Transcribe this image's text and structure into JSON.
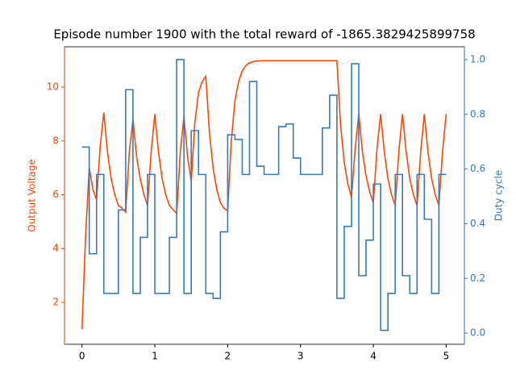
{
  "chart_data": {
    "type": "line",
    "title": "Episode number 1900 with the total reward of -1865.3829425899758",
    "y_label": "Output Voltage",
    "y2_label": "Duty cycle",
    "xlim": [
      -0.24,
      5.25
    ],
    "xticks": [
      0,
      1,
      2,
      3,
      4,
      5
    ],
    "ylim": [
      0.44,
      11.5
    ],
    "yticks": [
      2,
      4,
      6,
      8,
      10
    ],
    "y2lim": [
      -0.041,
      1.047
    ],
    "y2ticks": [
      {
        "value": 0,
        "label": "0.0"
      },
      {
        "value": 0.2,
        "label": "0.2"
      },
      {
        "value": 0.4,
        "label": "0.4"
      },
      {
        "value": 0.6,
        "label": "0.6"
      },
      {
        "value": 0.8,
        "label": "0.8"
      },
      {
        "value": 1,
        "label": "1.0"
      }
    ],
    "grid": false,
    "series": [
      {
        "name": "Output Voltage",
        "color": "#ff4500",
        "style": "line",
        "x": [
          0,
          0.05,
          0.1,
          0.15,
          0.2,
          0.25,
          0.3,
          0.35,
          0.4,
          0.45,
          0.5,
          0.55,
          0.6,
          0.65,
          0.7,
          0.75,
          0.8,
          0.85,
          0.9,
          0.95,
          1,
          1.05,
          1.1,
          1.15,
          1.2,
          1.25,
          1.3,
          1.35,
          1.4,
          1.45,
          1.5,
          1.55,
          1.6,
          1.65,
          1.7,
          1.75,
          1.8,
          1.85,
          1.9,
          1.95,
          2,
          2.05,
          2.1,
          2.15,
          2.2,
          2.25,
          2.3,
          2.35,
          2.4,
          2.5,
          2.6,
          2.7,
          2.8,
          2.9,
          3,
          3.1,
          3.2,
          3.3,
          3.4,
          3.5,
          3.55,
          3.6,
          3.65,
          3.7,
          3.75,
          3.8,
          3.85,
          3.9,
          3.95,
          4,
          4.05,
          4.1,
          4.15,
          4.2,
          4.25,
          4.3,
          4.35,
          4.4,
          4.45,
          4.5,
          4.55,
          4.6,
          4.65,
          4.7,
          4.75,
          4.8,
          4.85,
          4.9,
          4.95,
          5
        ],
        "values": [
          1.0,
          4.5,
          7.0,
          6.2,
          5.8,
          7.8,
          9.05,
          7.6,
          6.6,
          6.0,
          5.6,
          5.5,
          5.35,
          7.6,
          8.8,
          7.4,
          6.6,
          6.0,
          5.6,
          7.6,
          9.0,
          7.6,
          6.6,
          6.0,
          5.6,
          5.45,
          5.3,
          7.6,
          8.9,
          7.4,
          6.5,
          8.7,
          9.8,
          10.2,
          10.4,
          8.3,
          7.0,
          6.2,
          5.7,
          5.5,
          5.4,
          8.0,
          9.5,
          10.2,
          10.6,
          10.8,
          10.9,
          10.95,
          10.97,
          10.98,
          10.98,
          10.98,
          10.98,
          10.98,
          10.98,
          10.98,
          10.98,
          10.98,
          10.98,
          10.98,
          8.6,
          7.2,
          6.4,
          5.9,
          7.7,
          9.0,
          7.6,
          6.7,
          6.1,
          5.7,
          7.7,
          9.0,
          7.6,
          6.6,
          6.0,
          5.6,
          7.6,
          9.0,
          7.6,
          6.6,
          6.0,
          5.6,
          7.6,
          9.0,
          7.6,
          6.6,
          6.0,
          5.6,
          7.6,
          9.0
        ]
      },
      {
        "name": "Duty cycle",
        "color": "#3a7ab5",
        "style": "step",
        "axis": "y2",
        "x": [
          0,
          0.1,
          0.2,
          0.3,
          0.4,
          0.5,
          0.6,
          0.7,
          0.8,
          0.9,
          1,
          1.1,
          1.2,
          1.3,
          1.4,
          1.5,
          1.6,
          1.7,
          1.8,
          1.9,
          2,
          2.1,
          2.2,
          2.3,
          2.4,
          2.5,
          2.6,
          2.7,
          2.8,
          2.9,
          3,
          3.1,
          3.2,
          3.3,
          3.4,
          3.5,
          3.6,
          3.7,
          3.8,
          3.9,
          4,
          4.1,
          4.2,
          4.3,
          4.4,
          4.5,
          4.6,
          4.7,
          4.8,
          4.9,
          5
        ],
        "values": [
          0.68,
          0.29,
          0.58,
          0.145,
          0.145,
          0.45,
          0.89,
          0.145,
          0.35,
          0.58,
          0.145,
          0.145,
          0.35,
          1.0,
          0.145,
          0.74,
          0.58,
          0.145,
          0.127,
          0.37,
          0.725,
          0.708,
          0.58,
          0.92,
          0.61,
          0.58,
          0.58,
          0.755,
          0.765,
          0.64,
          0.58,
          0.58,
          0.58,
          0.75,
          0.87,
          0.127,
          0.39,
          0.985,
          0.21,
          0.34,
          0.545,
          0.01,
          0.145,
          0.58,
          0.21,
          0.145,
          0.58,
          0.416,
          0.145,
          0.58,
          0.58
        ]
      }
    ]
  }
}
